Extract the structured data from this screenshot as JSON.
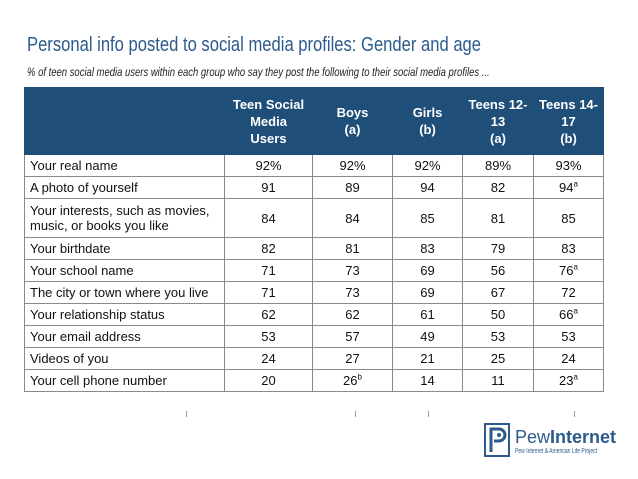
{
  "title": "Personal info posted to social media profiles: Gender and age",
  "subtitle": "% of teen social media users within each group who say they post the following to their social media profiles ...",
  "table": {
    "headers": [
      {
        "lines": [
          ""
        ]
      },
      {
        "lines": [
          "Teen Social",
          "Media",
          "Users"
        ]
      },
      {
        "lines": [
          "Boys",
          "(a)"
        ]
      },
      {
        "lines": [
          "Girls",
          "(b)"
        ]
      },
      {
        "lines": [
          "Teens 12-13",
          "(a)"
        ]
      },
      {
        "lines": [
          "Teens 14-17",
          "(b)"
        ]
      }
    ],
    "rows": [
      {
        "label": "Your real name",
        "cells": [
          {
            "v": "92%"
          },
          {
            "v": "92%"
          },
          {
            "v": "92%"
          },
          {
            "v": "89%"
          },
          {
            "v": "93%"
          }
        ]
      },
      {
        "label": "A photo of yourself",
        "cells": [
          {
            "v": "91"
          },
          {
            "v": "89"
          },
          {
            "v": "94"
          },
          {
            "v": "82"
          },
          {
            "v": "94",
            "sup": "a"
          }
        ]
      },
      {
        "label": "Your interests, such as movies, music, or books you like",
        "tall": true,
        "cells": [
          {
            "v": "84"
          },
          {
            "v": "84"
          },
          {
            "v": "85"
          },
          {
            "v": "81"
          },
          {
            "v": "85"
          }
        ]
      },
      {
        "label": "Your birthdate",
        "cells": [
          {
            "v": "82"
          },
          {
            "v": "81"
          },
          {
            "v": "83"
          },
          {
            "v": "79"
          },
          {
            "v": "83"
          }
        ]
      },
      {
        "label": "Your school name",
        "cells": [
          {
            "v": "71"
          },
          {
            "v": "73"
          },
          {
            "v": "69"
          },
          {
            "v": "56"
          },
          {
            "v": "76",
            "sup": "a"
          }
        ]
      },
      {
        "label": "The city or town where you live",
        "cells": [
          {
            "v": "71"
          },
          {
            "v": "73"
          },
          {
            "v": "69"
          },
          {
            "v": "67"
          },
          {
            "v": "72"
          }
        ]
      },
      {
        "label": "Your relationship status",
        "cells": [
          {
            "v": "62"
          },
          {
            "v": "62"
          },
          {
            "v": "61"
          },
          {
            "v": "50"
          },
          {
            "v": "66",
            "sup": "a"
          }
        ]
      },
      {
        "label": "Your email address",
        "cells": [
          {
            "v": "53"
          },
          {
            "v": "57"
          },
          {
            "v": "49"
          },
          {
            "v": "53"
          },
          {
            "v": "53"
          }
        ]
      },
      {
        "label": "Videos of you",
        "cells": [
          {
            "v": "24"
          },
          {
            "v": "27"
          },
          {
            "v": "21"
          },
          {
            "v": "25"
          },
          {
            "v": "24"
          }
        ]
      },
      {
        "label": "Your cell phone number",
        "cells": [
          {
            "v": "20"
          },
          {
            "v": "26",
            "sup": "b"
          },
          {
            "v": "14"
          },
          {
            "v": "11"
          },
          {
            "v": "23",
            "sup": "a"
          }
        ]
      }
    ]
  },
  "logo": {
    "name_light": "Pew",
    "name_bold": "Internet",
    "tagline": "Pew Internet & American Life Project"
  },
  "colors": {
    "header_bg": "#1f4e79",
    "title": "#2c5a8c",
    "border": "#8a8a8a"
  }
}
